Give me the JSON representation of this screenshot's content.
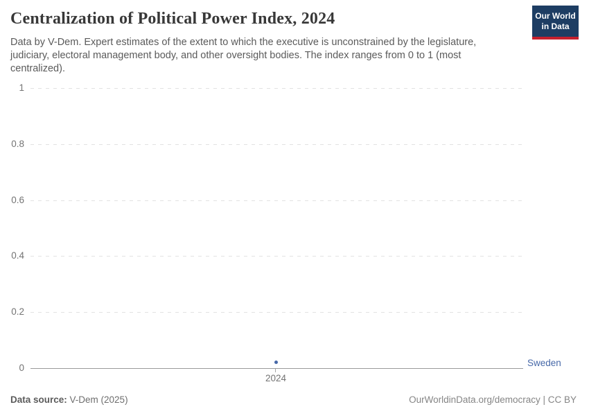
{
  "page": {
    "title": "Centralization of Political Power Index, 2024",
    "subtitle": "Data by V-Dem. Expert estimates of the extent to which the executive is unconstrained by the legislature, judiciary, electoral management body, and other oversight bodies. The index ranges from 0 to 1 (most centralized).",
    "logo": {
      "line1": "Our World",
      "line2": "in Data",
      "bg_color": "#1d3d63",
      "stripe_color": "#c5202e"
    }
  },
  "chart_data": {
    "type": "scatter",
    "title": "Centralization of Political Power Index, 2024",
    "x": [
      "2024"
    ],
    "series": [
      {
        "name": "Sweden",
        "values": [
          0.02
        ],
        "color": "#4668a8"
      }
    ],
    "ylim": [
      0,
      1
    ],
    "yticks": [
      1,
      0.8,
      0.6,
      0.4,
      0.2,
      0
    ],
    "xlabel": "",
    "ylabel": "",
    "grid": "horizontal-dashed",
    "legend_position": "right-entity-label",
    "grid_color": "#e2e2e2",
    "axis_line_color": "#999999",
    "tick_text_color": "#737373"
  },
  "footer": {
    "source_label": "Data source:",
    "source_value": " V-Dem (2025)",
    "credit": "OurWorldinData.org/democracy | CC BY"
  }
}
